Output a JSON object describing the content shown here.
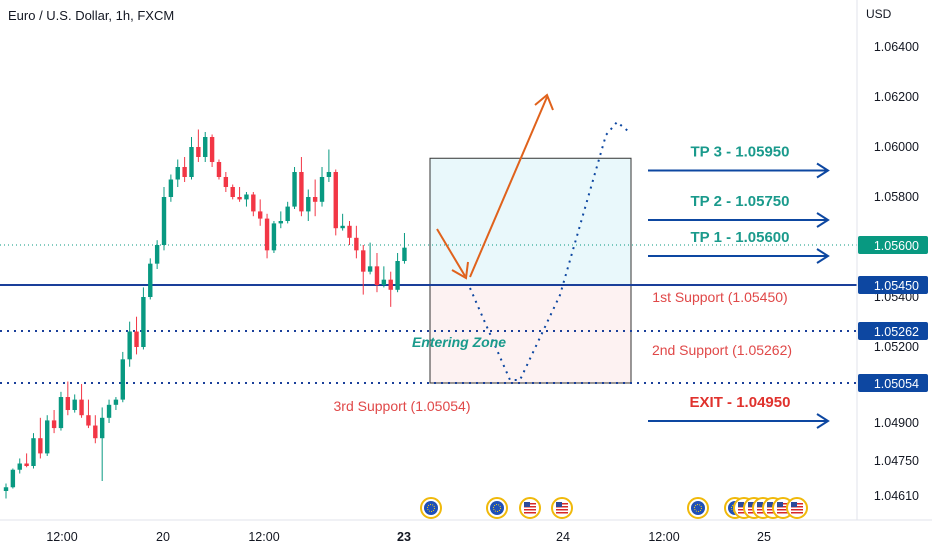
{
  "header": {
    "title": "Euro / U.S. Dollar, 1h, FXCM",
    "currency": "USD"
  },
  "colors": {
    "up": "#089981",
    "down": "#f23645",
    "blue": "#0d47a1",
    "blue_line": "#1a3f9a",
    "teal": "#1a9a8c",
    "red_text": "#e04848",
    "orange": "#e0621c",
    "zone_upper": "#e9f8fb",
    "zone_lower": "#fdf2f2",
    "current_price": "#089981"
  },
  "chart_data": {
    "type": "candlestick",
    "title": "Euro / U.S. Dollar, 1h, FXCM",
    "y_ticks": [
      "1.06400",
      "1.06200",
      "1.06000",
      "1.05800",
      "1.05400",
      "1.05200",
      "1.04900",
      "1.04750",
      "1.04610"
    ],
    "x_ticks": [
      "12:00",
      "20",
      "12:00",
      "23",
      "24",
      "12:00",
      "25"
    ],
    "price_badges": [
      "1.05600",
      "1.05450",
      "1.05262",
      "1.05054"
    ],
    "candles": [
      {
        "o": 1.0463,
        "h": 1.0466,
        "l": 1.046,
        "c": 1.04645
      },
      {
        "o": 1.04645,
        "h": 1.0472,
        "l": 1.0464,
        "c": 1.04715
      },
      {
        "o": 1.04715,
        "h": 1.0476,
        "l": 1.047,
        "c": 1.0474
      },
      {
        "o": 1.0474,
        "h": 1.0478,
        "l": 1.04725,
        "c": 1.0473
      },
      {
        "o": 1.0473,
        "h": 1.0486,
        "l": 1.0472,
        "c": 1.0484
      },
      {
        "o": 1.0484,
        "h": 1.0492,
        "l": 1.0476,
        "c": 1.0478
      },
      {
        "o": 1.0478,
        "h": 1.0493,
        "l": 1.0477,
        "c": 1.0491
      },
      {
        "o": 1.0491,
        "h": 1.0495,
        "l": 1.0486,
        "c": 1.0488
      },
      {
        "o": 1.0488,
        "h": 1.0502,
        "l": 1.0487,
        "c": 1.05
      },
      {
        "o": 1.05,
        "h": 1.0506,
        "l": 1.0493,
        "c": 1.0495
      },
      {
        "o": 1.0495,
        "h": 1.0501,
        "l": 1.0494,
        "c": 1.0499
      },
      {
        "o": 1.0499,
        "h": 1.0505,
        "l": 1.0492,
        "c": 1.0493
      },
      {
        "o": 1.0493,
        "h": 1.0499,
        "l": 1.0488,
        "c": 1.0489
      },
      {
        "o": 1.0489,
        "h": 1.0493,
        "l": 1.0482,
        "c": 1.0484
      },
      {
        "o": 1.0484,
        "h": 1.0496,
        "l": 1.0467,
        "c": 1.0492
      },
      {
        "o": 1.0492,
        "h": 1.0499,
        "l": 1.049,
        "c": 1.0497
      },
      {
        "o": 1.0497,
        "h": 1.05,
        "l": 1.0495,
        "c": 1.0499
      },
      {
        "o": 1.0499,
        "h": 1.0518,
        "l": 1.0498,
        "c": 1.0515
      },
      {
        "o": 1.0515,
        "h": 1.053,
        "l": 1.0512,
        "c": 1.0526
      },
      {
        "o": 1.0526,
        "h": 1.0532,
        "l": 1.0517,
        "c": 1.052
      },
      {
        "o": 1.052,
        "h": 1.0544,
        "l": 1.0519,
        "c": 1.054
      },
      {
        "o": 1.054,
        "h": 1.0555,
        "l": 1.0539,
        "c": 1.0553
      },
      {
        "o": 1.0553,
        "h": 1.0562,
        "l": 1.0551,
        "c": 1.056
      },
      {
        "o": 1.056,
        "h": 1.0584,
        "l": 1.0558,
        "c": 1.058
      },
      {
        "o": 1.058,
        "h": 1.0589,
        "l": 1.0578,
        "c": 1.0587
      },
      {
        "o": 1.0587,
        "h": 1.0595,
        "l": 1.0584,
        "c": 1.0592
      },
      {
        "o": 1.0592,
        "h": 1.0596,
        "l": 1.0586,
        "c": 1.0588
      },
      {
        "o": 1.0588,
        "h": 1.0604,
        "l": 1.0587,
        "c": 1.06
      },
      {
        "o": 1.06,
        "h": 1.0607,
        "l": 1.0594,
        "c": 1.0596
      },
      {
        "o": 1.0596,
        "h": 1.0606,
        "l": 1.0594,
        "c": 1.0604
      },
      {
        "o": 1.0604,
        "h": 1.0605,
        "l": 1.0592,
        "c": 1.0594
      },
      {
        "o": 1.0594,
        "h": 1.0595,
        "l": 1.0587,
        "c": 1.0588
      },
      {
        "o": 1.0588,
        "h": 1.059,
        "l": 1.0582,
        "c": 1.0584
      },
      {
        "o": 1.0584,
        "h": 1.0585,
        "l": 1.0579,
        "c": 1.058
      },
      {
        "o": 1.058,
        "h": 1.0584,
        "l": 1.0578,
        "c": 1.0579
      },
      {
        "o": 1.0579,
        "h": 1.0582,
        "l": 1.0576,
        "c": 1.0581
      },
      {
        "o": 1.0581,
        "h": 1.0582,
        "l": 1.0572,
        "c": 1.0574
      },
      {
        "o": 1.0574,
        "h": 1.0579,
        "l": 1.0568,
        "c": 1.0571
      },
      {
        "o": 1.0571,
        "h": 1.0573,
        "l": 1.0555,
        "c": 1.0558
      },
      {
        "o": 1.0558,
        "h": 1.057,
        "l": 1.0557,
        "c": 1.0569
      },
      {
        "o": 1.0569,
        "h": 1.0574,
        "l": 1.0567,
        "c": 1.057
      },
      {
        "o": 1.057,
        "h": 1.0578,
        "l": 1.0569,
        "c": 1.0576
      },
      {
        "o": 1.0576,
        "h": 1.0592,
        "l": 1.0575,
        "c": 1.059
      },
      {
        "o": 1.059,
        "h": 1.0596,
        "l": 1.0572,
        "c": 1.0574
      },
      {
        "o": 1.0574,
        "h": 1.0583,
        "l": 1.057,
        "c": 1.058
      },
      {
        "o": 1.058,
        "h": 1.0587,
        "l": 1.0572,
        "c": 1.0578
      },
      {
        "o": 1.0578,
        "h": 1.0592,
        "l": 1.0576,
        "c": 1.0588
      },
      {
        "o": 1.0588,
        "h": 1.0599,
        "l": 1.0586,
        "c": 1.059
      },
      {
        "o": 1.059,
        "h": 1.0591,
        "l": 1.0564,
        "c": 1.0567
      },
      {
        "o": 1.0567,
        "h": 1.0573,
        "l": 1.0566,
        "c": 1.0568
      },
      {
        "o": 1.0568,
        "h": 1.057,
        "l": 1.056,
        "c": 1.0563
      },
      {
        "o": 1.0563,
        "h": 1.0568,
        "l": 1.0555,
        "c": 1.0558
      },
      {
        "o": 1.0558,
        "h": 1.056,
        "l": 1.0541,
        "c": 1.055
      },
      {
        "o": 1.055,
        "h": 1.0561,
        "l": 1.0549,
        "c": 1.0552
      },
      {
        "o": 1.0552,
        "h": 1.0557,
        "l": 1.0542,
        "c": 1.0545
      },
      {
        "o": 1.0545,
        "h": 1.0552,
        "l": 1.0544,
        "c": 1.0547
      },
      {
        "o": 1.0547,
        "h": 1.055,
        "l": 1.0536,
        "c": 1.0543
      },
      {
        "o": 1.0543,
        "h": 1.0557,
        "l": 1.0542,
        "c": 1.0554
      },
      {
        "o": 1.0554,
        "h": 1.0565,
        "l": 1.0553,
        "c": 1.0559
      }
    ],
    "levels": [
      {
        "price": 1.056,
        "style": "dotted-current"
      },
      {
        "price": 1.0545,
        "style": "solid"
      },
      {
        "price": 1.05262,
        "style": "dotted"
      },
      {
        "price": 1.05054,
        "style": "dotted"
      }
    ],
    "zones": [
      {
        "from": 1.0545,
        "to": 1.05955,
        "name": "upper"
      },
      {
        "from": 1.05054,
        "to": 1.0545,
        "name": "lower"
      }
    ],
    "targets": [
      {
        "label": "TP 3 - 1.05950",
        "price": 1.0595,
        "color": "teal"
      },
      {
        "label": "TP 2 - 1.05750",
        "price": 1.0575,
        "color": "teal"
      },
      {
        "label": "TP 1 - 1.05600",
        "price": 1.056,
        "color": "teal"
      },
      {
        "label": "EXIT - 1.04950",
        "price": 1.0495,
        "color": "red"
      }
    ],
    "support_labels": [
      {
        "label": "1st Support (1.05450)"
      },
      {
        "label": "2nd Support (1.05262)"
      },
      {
        "label": "3rd Support (1.05054)"
      }
    ],
    "zone_label": "Entering Zone",
    "events": [
      "eu",
      "eu",
      "us",
      "us",
      "eu",
      "eu",
      "us",
      "us",
      "us",
      "us",
      "us",
      "us"
    ]
  }
}
